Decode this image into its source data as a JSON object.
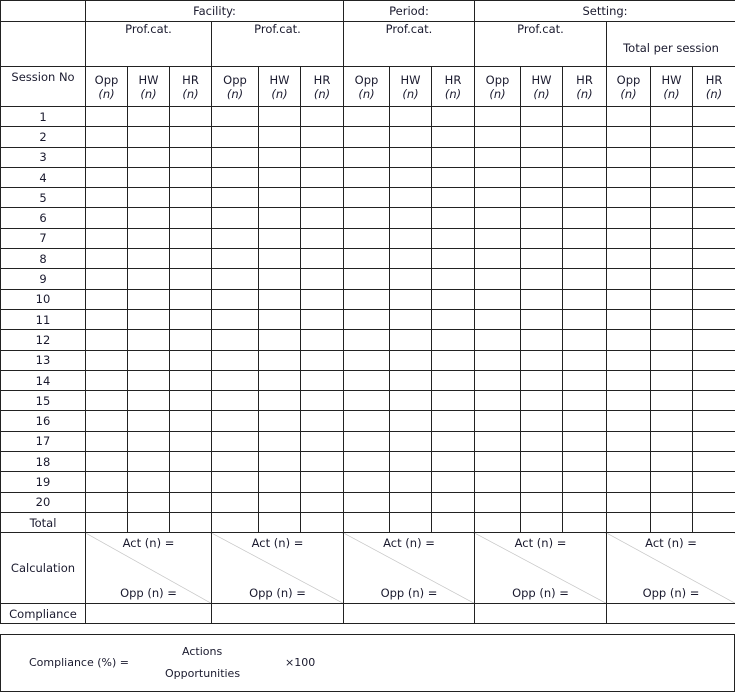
{
  "header": {
    "groups": [
      "Facility:",
      "Period:",
      "Setting:"
    ],
    "prof_cat": "Prof.cat.",
    "total_per_session": "Total per session",
    "session_no": "Session No",
    "col_labels": [
      "Opp",
      "HW",
      "HR"
    ],
    "unit": "(n)"
  },
  "rows": [
    "1",
    "2",
    "3",
    "4",
    "5",
    "6",
    "7",
    "8",
    "9",
    "10",
    "11",
    "12",
    "13",
    "14",
    "15",
    "16",
    "17",
    "18",
    "19",
    "20"
  ],
  "total_label": "Total",
  "calculation": {
    "label": "Calculation",
    "act": "Act (n) =",
    "opp": "Opp (n) ="
  },
  "compliance_label": "Compliance",
  "formula": {
    "lhs": "Compliance (%) =",
    "numerator": "Actions",
    "denominator": "Opportunities",
    "multiplier": "×100"
  }
}
